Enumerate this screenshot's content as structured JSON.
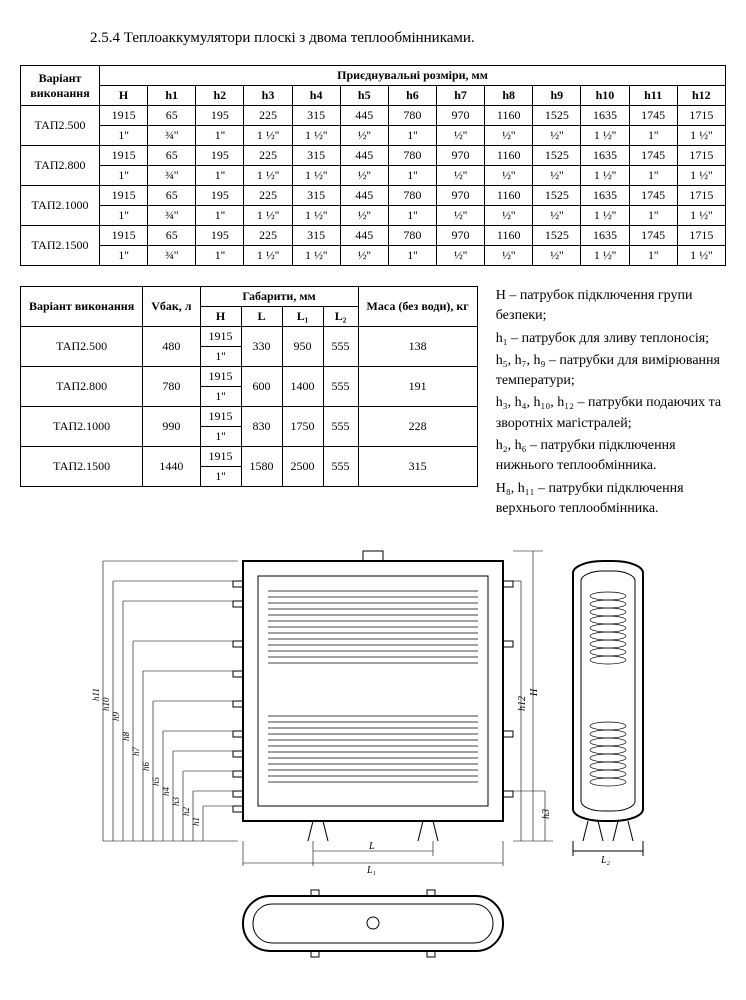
{
  "heading": "2.5.4 Теплоаккумулятори плоскі з двома теплообмінниками.",
  "table1": {
    "header_variant": "Варіант виконання",
    "header_group": "Приєднувальні розміри, мм",
    "cols": [
      "H",
      "h1",
      "h2",
      "h3",
      "h4",
      "h5",
      "h6",
      "h7",
      "h8",
      "h9",
      "h10",
      "h11",
      "h12"
    ],
    "rows": [
      {
        "name": "ТАП2.500",
        "r1": [
          "1915",
          "65",
          "195",
          "225",
          "315",
          "445",
          "780",
          "970",
          "1160",
          "1525",
          "1635",
          "1745",
          "1715"
        ],
        "r2": [
          "1''",
          "¾''",
          "1''",
          "1 ½''",
          "1 ½''",
          "½''",
          "1''",
          "½''",
          "½''",
          "½''",
          "1 ½''",
          "1''",
          "1 ½''"
        ]
      },
      {
        "name": "ТАП2.800",
        "r1": [
          "1915",
          "65",
          "195",
          "225",
          "315",
          "445",
          "780",
          "970",
          "1160",
          "1525",
          "1635",
          "1745",
          "1715"
        ],
        "r2": [
          "1''",
          "¾''",
          "1''",
          "1 ½''",
          "1 ½''",
          "½''",
          "1''",
          "½''",
          "½''",
          "½''",
          "1 ½''",
          "1''",
          "1 ½''"
        ]
      },
      {
        "name": "ТАП2.1000",
        "r1": [
          "1915",
          "65",
          "195",
          "225",
          "315",
          "445",
          "780",
          "970",
          "1160",
          "1525",
          "1635",
          "1745",
          "1715"
        ],
        "r2": [
          "1''",
          "¾''",
          "1''",
          "1 ½''",
          "1 ½''",
          "½''",
          "1''",
          "½''",
          "½''",
          "½''",
          "1 ½''",
          "1''",
          "1 ½''"
        ]
      },
      {
        "name": "ТАП2.1500",
        "r1": [
          "1915",
          "65",
          "195",
          "225",
          "315",
          "445",
          "780",
          "970",
          "1160",
          "1525",
          "1635",
          "1745",
          "1715"
        ],
        "r2": [
          "1''",
          "¾''",
          "1''",
          "1 ½''",
          "1 ½''",
          "½''",
          "1''",
          "½''",
          "½''",
          "½''",
          "1 ½''",
          "1''",
          "1 ½''"
        ]
      }
    ]
  },
  "table2": {
    "header_variant": "Варіант виконання",
    "header_vbak": "Vбак, л",
    "header_gab": "Габарити, мм",
    "header_mass": "Маса (без води), кг",
    "cols": [
      "H",
      "L",
      "L₁",
      "L₂"
    ],
    "rows": [
      {
        "name": "ТАП2.500",
        "v": "480",
        "h1": "1915",
        "h2": "1''",
        "l": "330",
        "l1": "950",
        "l2": "555",
        "m": "138"
      },
      {
        "name": "ТАП2.800",
        "v": "780",
        "h1": "1915",
        "h2": "1''",
        "l": "600",
        "l1": "1400",
        "l2": "555",
        "m": "191"
      },
      {
        "name": "ТАП2.1000",
        "v": "990",
        "h1": "1915",
        "h2": "1''",
        "l": "830",
        "l1": "1750",
        "l2": "555",
        "m": "228"
      },
      {
        "name": "ТАП2.1500",
        "v": "1440",
        "h1": "1915",
        "h2": "1''",
        "l": "1580",
        "l1": "2500",
        "l2": "555",
        "m": "315"
      }
    ]
  },
  "legend": [
    "H – патрубок підключення групи безпеки;",
    "h₁ – патрубок для зливу теплоносія;",
    "h₅, h₇, h₉ – патрубки для вимірювання температури;",
    "h₃, h₄, h₁₀, h₁₂ – патрубки подаючих та зворотніх магістралей;",
    "h₂, h₆  – патрубки підключення нижнього теплообмінника.",
    "H₈, h₁₁  – патрубки підключення верхнього теплообмінника."
  ],
  "diagram_labels": {
    "h_series": [
      "h1",
      "h2",
      "h3",
      "h4",
      "h5",
      "h6",
      "h7",
      "h8",
      "h9",
      "h10",
      "h11",
      "h12"
    ],
    "H": "H",
    "L": "L",
    "L1": "L₁",
    "L2": "L₂"
  },
  "style": {
    "border_color": "#000000",
    "text_color": "#000000",
    "bg": "#ffffff",
    "font_body": 13,
    "font_table": 12,
    "font_legend": 14
  }
}
